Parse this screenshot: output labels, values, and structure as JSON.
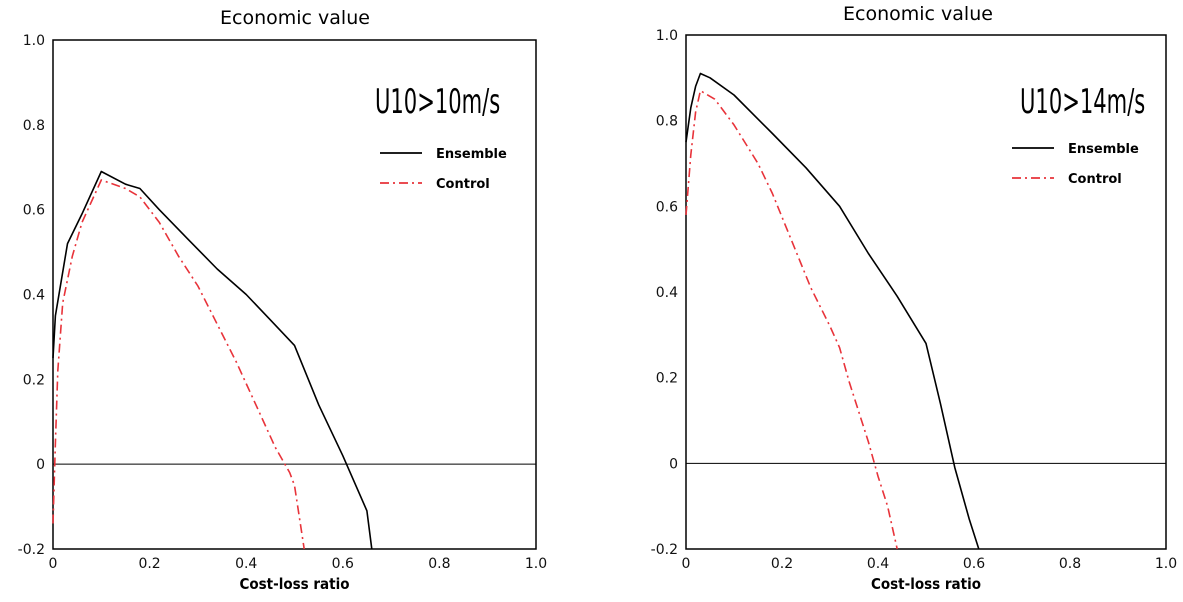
{
  "chart_data": [
    {
      "type": "line",
      "title": "Economic value",
      "xlabel": "Cost-loss ratio",
      "ylabel": "",
      "xlim": [
        0,
        1
      ],
      "ylim": [
        -0.2,
        1
      ],
      "x_ticks": [
        "0",
        "0.2",
        "0.4",
        "0.6",
        "0.8",
        "1.0"
      ],
      "y_ticks": [
        "-0.2",
        "0",
        "0.2",
        "0.4",
        "0.6",
        "0.8",
        "1.0"
      ],
      "annotation": "U10>10m/s",
      "legend_position": "top-right",
      "zero_line": true,
      "series": [
        {
          "name": "Ensemble",
          "color": "#000000",
          "style": "solid",
          "x": [
            0.0,
            0.005,
            0.03,
            0.06,
            0.1,
            0.15,
            0.18,
            0.22,
            0.28,
            0.34,
            0.4,
            0.45,
            0.5,
            0.55,
            0.6,
            0.65,
            0.66
          ],
          "y": [
            0.25,
            0.35,
            0.52,
            0.59,
            0.69,
            0.66,
            0.65,
            0.6,
            0.53,
            0.46,
            0.4,
            0.34,
            0.28,
            0.14,
            0.02,
            -0.11,
            -0.2
          ]
        },
        {
          "name": "Control",
          "color": "#e8333a",
          "style": "dashdot",
          "x": [
            0.0,
            0.005,
            0.01,
            0.02,
            0.04,
            0.06,
            0.1,
            0.15,
            0.18,
            0.22,
            0.26,
            0.3,
            0.34,
            0.38,
            0.42,
            0.46,
            0.49,
            0.5,
            0.52
          ],
          "y": [
            -0.14,
            0.05,
            0.22,
            0.38,
            0.49,
            0.57,
            0.67,
            0.65,
            0.63,
            0.57,
            0.49,
            0.42,
            0.33,
            0.24,
            0.14,
            0.04,
            -0.02,
            -0.05,
            -0.2
          ]
        }
      ]
    },
    {
      "type": "line",
      "title": "Economic value",
      "xlabel": "Cost-loss ratio",
      "ylabel": "",
      "xlim": [
        0,
        1
      ],
      "ylim": [
        -0.2,
        1
      ],
      "x_ticks": [
        "0",
        "0.2",
        "0.4",
        "0.6",
        "0.8",
        "1.0"
      ],
      "y_ticks": [
        "-0.2",
        "0",
        "0.2",
        "0.4",
        "0.6",
        "0.8",
        "1.0"
      ],
      "annotation": "U10>14m/s",
      "legend_position": "top-right",
      "zero_line": true,
      "series": [
        {
          "name": "Ensemble",
          "color": "#000000",
          "style": "solid",
          "x": [
            0.0,
            0.005,
            0.01,
            0.02,
            0.03,
            0.05,
            0.1,
            0.18,
            0.25,
            0.32,
            0.38,
            0.44,
            0.5,
            0.53,
            0.56,
            0.59,
            0.61
          ],
          "y": [
            0.75,
            0.79,
            0.83,
            0.88,
            0.91,
            0.9,
            0.86,
            0.77,
            0.69,
            0.6,
            0.49,
            0.39,
            0.28,
            0.14,
            -0.01,
            -0.13,
            -0.2
          ]
        },
        {
          "name": "Control",
          "color": "#e8333a",
          "style": "dashdot",
          "x": [
            0.0,
            0.005,
            0.01,
            0.02,
            0.03,
            0.06,
            0.1,
            0.15,
            0.18,
            0.22,
            0.26,
            0.3,
            0.32,
            0.34,
            0.36,
            0.38,
            0.4,
            0.42,
            0.44
          ],
          "y": [
            0.58,
            0.65,
            0.72,
            0.82,
            0.87,
            0.85,
            0.79,
            0.7,
            0.63,
            0.52,
            0.41,
            0.32,
            0.27,
            0.19,
            0.12,
            0.05,
            -0.03,
            -0.1,
            -0.2
          ]
        }
      ]
    }
  ]
}
